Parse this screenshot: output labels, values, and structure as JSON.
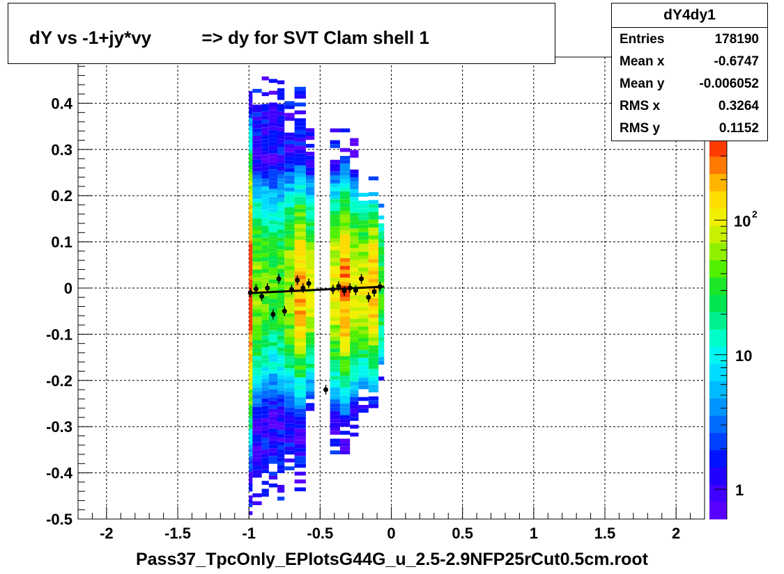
{
  "title": "dY vs -1+jy*vy          => dy for SVT Clam shell 1",
  "stats": {
    "name": "dY4dy1",
    "rows": [
      {
        "key": "Entries",
        "value": "178190"
      },
      {
        "key": "Mean x",
        "value": "-0.6747"
      },
      {
        "key": "Mean y",
        "value": "-0.006052"
      },
      {
        "key": "RMS x",
        "value": "0.3264"
      },
      {
        "key": "RMS y",
        "value": "0.1152"
      }
    ]
  },
  "chart_data": {
    "type": "heatmap",
    "title": "dY vs -1+jy*vy          => dy for SVT Clam shell 1",
    "xlabel": "Pass37_TpcOnly_EPlotsG44G_u_2.5-2.9NFP25rCut0.5cm.root",
    "ylabel": "",
    "xlim": [
      -2.2,
      2.2
    ],
    "ylim": [
      -0.5,
      0.5
    ],
    "x_ticks": [
      -2,
      -1.5,
      -1,
      -0.5,
      0,
      0.5,
      1,
      1.5,
      2
    ],
    "x_tick_labels": [
      "-2",
      "-1.5",
      "-1",
      "-0.5",
      "0",
      "0.5",
      "1",
      "1.5",
      "2"
    ],
    "y_ticks": [
      -0.5,
      -0.4,
      -0.3,
      -0.2,
      -0.1,
      0,
      0.1,
      0.2,
      0.3,
      0.4
    ],
    "y_tick_labels": [
      "-0.5",
      "-0.4",
      "-0.3",
      "-0.2",
      "-0.1",
      "0",
      "0.1",
      "0.2",
      "0.3",
      "0.4"
    ],
    "grid": true,
    "z_scale": "log",
    "z_range": [
      0.6,
      400
    ],
    "z_ticks": [
      1,
      10,
      100
    ],
    "z_tick_labels": [
      "1",
      "10",
      "10^2"
    ],
    "palette": [
      "#5a00ff",
      "#3f00ff",
      "#2200ff",
      "#0012ff",
      "#0040ff",
      "#006cff",
      "#0094ff",
      "#00bbff",
      "#00dcff",
      "#00f6f0",
      "#00ffc8",
      "#00f090",
      "#00e650",
      "#1ce628",
      "#50f000",
      "#90f000",
      "#c8f000",
      "#f0f000",
      "#ffdc00",
      "#ffb400",
      "#ff7800",
      "#ff3c00"
    ],
    "bands": [
      {
        "x_start": -1.0,
        "x_end": -0.975,
        "y_min": -0.5,
        "y_max": 0.48,
        "peak": 400,
        "sigma": 0.12
      },
      {
        "x_start": -0.975,
        "x_end": -0.91,
        "y_min": -0.47,
        "y_max": 0.45,
        "peak": 60,
        "sigma": 0.1
      },
      {
        "x_start": -0.91,
        "x_end": -0.86,
        "y_min": -0.46,
        "y_max": 0.46,
        "peak": 50,
        "sigma": 0.1
      },
      {
        "x_start": -0.86,
        "x_end": -0.8,
        "y_min": -0.44,
        "y_max": 0.46,
        "peak": 40,
        "sigma": 0.1
      },
      {
        "x_start": -0.8,
        "x_end": -0.75,
        "y_min": -0.46,
        "y_max": 0.45,
        "peak": 45,
        "sigma": 0.1
      },
      {
        "x_start": -0.75,
        "x_end": -0.68,
        "y_min": -0.42,
        "y_max": 0.4,
        "peak": 70,
        "sigma": 0.1
      },
      {
        "x_start": -0.68,
        "x_end": -0.6,
        "y_min": -0.44,
        "y_max": 0.43,
        "peak": 200,
        "sigma": 0.09
      },
      {
        "x_start": -0.6,
        "x_end": -0.54,
        "y_min": -0.3,
        "y_max": 0.35,
        "peak": 90,
        "sigma": 0.09
      },
      {
        "x_start": -0.43,
        "x_end": -0.36,
        "y_min": -0.36,
        "y_max": 0.34,
        "peak": 120,
        "sigma": 0.09
      },
      {
        "x_start": -0.36,
        "x_end": -0.29,
        "y_min": -0.36,
        "y_max": 0.35,
        "peak": 250,
        "sigma": 0.09
      },
      {
        "x_start": -0.29,
        "x_end": -0.23,
        "y_min": -0.33,
        "y_max": 0.32,
        "peak": 100,
        "sigma": 0.09
      },
      {
        "x_start": -0.23,
        "x_end": -0.16,
        "y_min": -0.27,
        "y_max": 0.24,
        "peak": 120,
        "sigma": 0.08
      },
      {
        "x_start": -0.16,
        "x_end": -0.09,
        "y_min": -0.26,
        "y_max": 0.24,
        "peak": 180,
        "sigma": 0.08
      },
      {
        "x_start": -0.09,
        "x_end": -0.05,
        "y_min": -0.2,
        "y_max": 0.18,
        "peak": 40,
        "sigma": 0.08
      }
    ],
    "profile_points": [
      {
        "x": -0.99,
        "y": -0.01
      },
      {
        "x": -0.95,
        "y": -0.002
      },
      {
        "x": -0.91,
        "y": -0.018
      },
      {
        "x": -0.87,
        "y": 0.0
      },
      {
        "x": -0.83,
        "y": -0.057
      },
      {
        "x": -0.79,
        "y": 0.02
      },
      {
        "x": -0.75,
        "y": -0.05
      },
      {
        "x": -0.7,
        "y": -0.003
      },
      {
        "x": -0.66,
        "y": 0.017
      },
      {
        "x": -0.62,
        "y": 0.0
      },
      {
        "x": -0.58,
        "y": 0.01
      },
      {
        "x": -0.46,
        "y": -0.22
      },
      {
        "x": -0.41,
        "y": -0.003
      },
      {
        "x": -0.37,
        "y": 0.004
      },
      {
        "x": -0.33,
        "y": -0.006
      },
      {
        "x": -0.29,
        "y": 0.0
      },
      {
        "x": -0.25,
        "y": -0.005
      },
      {
        "x": -0.21,
        "y": 0.02
      },
      {
        "x": -0.16,
        "y": -0.02
      },
      {
        "x": -0.12,
        "y": -0.008
      },
      {
        "x": -0.08,
        "y": 0.003
      }
    ],
    "fit_line": {
      "x1": -1.0,
      "y1": -0.011,
      "x2": -0.05,
      "y2": 0.003
    }
  }
}
